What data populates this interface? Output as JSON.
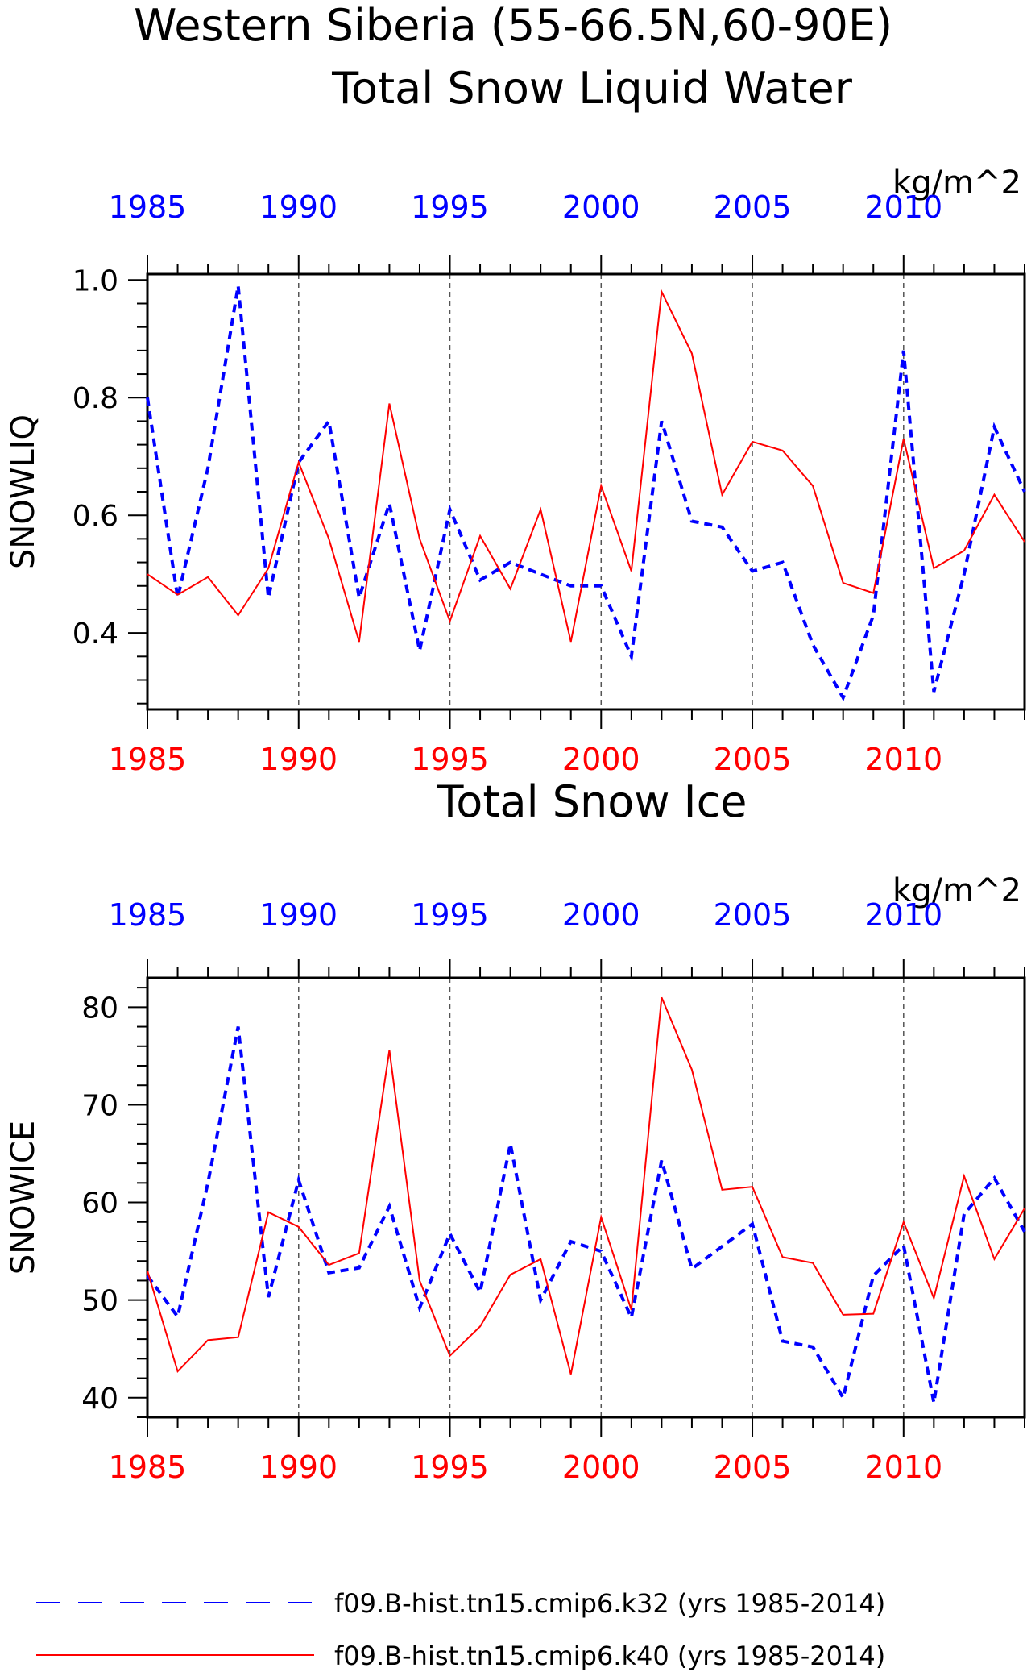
{
  "title_line1": "Western Siberia (55-66.5N,60-90E)",
  "series_legend": [
    {
      "name": "f09.B-hist.tn15.cmip6.k32 (yrs 1985-2014)",
      "color": "#0000ff",
      "dash": "dashed"
    },
    {
      "name": "f09.B-hist.tn15.cmip6.k40 (yrs 1985-2014)",
      "color": "#ff0000",
      "dash": "solid"
    }
  ],
  "chart_data": [
    {
      "type": "line",
      "title": "Total Snow Liquid Water",
      "units": "kg/m^2",
      "ylabel": "SNOWLIQ",
      "xlim": [
        1985,
        2014
      ],
      "ylim": [
        0.27,
        1.01
      ],
      "yticks": [
        0.4,
        0.6,
        0.8,
        1.0
      ],
      "ytick_labels": [
        "0.4",
        "0.6",
        "0.8",
        "1.0"
      ],
      "xticks": [
        1985,
        1990,
        1995,
        2000,
        2005,
        2010
      ],
      "grid_x": [
        1990,
        1995,
        2000,
        2005,
        2010
      ],
      "x": [
        1985,
        1986,
        1987,
        1988,
        1989,
        1990,
        1991,
        1992,
        1993,
        1994,
        1995,
        1996,
        1997,
        1998,
        1999,
        2000,
        2001,
        2002,
        2003,
        2004,
        2005,
        2006,
        2007,
        2008,
        2009,
        2010,
        2011,
        2012,
        2013,
        2014
      ],
      "series": [
        {
          "name": "f09.B-hist.tn15.cmip6.k32 (yrs 1985-2014)",
          "values": [
            0.8,
            0.46,
            0.68,
            0.99,
            0.46,
            0.69,
            0.76,
            0.46,
            0.62,
            0.37,
            0.61,
            0.49,
            0.52,
            0.5,
            0.48,
            0.48,
            0.36,
            0.76,
            0.59,
            0.58,
            0.505,
            0.52,
            0.38,
            0.29,
            0.43,
            0.88,
            0.3,
            0.5,
            0.75,
            0.64
          ]
        },
        {
          "name": "f09.B-hist.tn15.cmip6.k40 (yrs 1985-2014)",
          "values": [
            0.5,
            0.465,
            0.495,
            0.43,
            0.51,
            0.69,
            0.56,
            0.385,
            0.79,
            0.56,
            0.42,
            0.565,
            0.475,
            0.61,
            0.385,
            0.65,
            0.505,
            0.98,
            0.875,
            0.635,
            0.725,
            0.71,
            0.65,
            0.485,
            0.468,
            0.73,
            0.51,
            0.54,
            0.635,
            0.555
          ]
        }
      ]
    },
    {
      "type": "line",
      "title": "Total Snow Ice",
      "units": "kg/m^2",
      "ylabel": "SNOWICE",
      "xlim": [
        1985,
        2014
      ],
      "ylim": [
        38,
        83
      ],
      "yticks": [
        40,
        50,
        60,
        70,
        80
      ],
      "ytick_labels": [
        "40",
        "50",
        "60",
        "70",
        "80"
      ],
      "xticks": [
        1985,
        1990,
        1995,
        2000,
        2005,
        2010
      ],
      "grid_x": [
        1990,
        1995,
        2000,
        2005,
        2010
      ],
      "x": [
        1985,
        1986,
        1987,
        1988,
        1989,
        1990,
        1991,
        1992,
        1993,
        1994,
        1995,
        1996,
        1997,
        1998,
        1999,
        2000,
        2001,
        2002,
        2003,
        2004,
        2005,
        2006,
        2007,
        2008,
        2009,
        2010,
        2011,
        2012,
        2013,
        2014
      ],
      "series": [
        {
          "name": "f09.B-hist.tn15.cmip6.k32 (yrs 1985-2014)",
          "values": [
            52.5,
            48.3,
            62,
            78,
            50.3,
            62.3,
            52.8,
            53.3,
            59.6,
            49.2,
            56.8,
            50.8,
            66,
            50,
            56,
            55,
            48.2,
            64.3,
            53.2,
            55.5,
            57.8,
            45.8,
            45.2,
            40,
            52.5,
            55.6,
            39.5,
            58.8,
            62.5,
            57
          ]
        },
        {
          "name": "f09.B-hist.tn15.cmip6.k40 (yrs 1985-2014)",
          "values": [
            53,
            42.7,
            45.9,
            46.2,
            59,
            57.5,
            53.6,
            54.8,
            75.6,
            52,
            44.3,
            47.3,
            52.6,
            54.2,
            42.4,
            58.5,
            49,
            81,
            73.6,
            61.3,
            61.6,
            54.4,
            53.8,
            48.5,
            48.6,
            58,
            50.2,
            62.7,
            54.2,
            59.4
          ]
        }
      ]
    }
  ]
}
